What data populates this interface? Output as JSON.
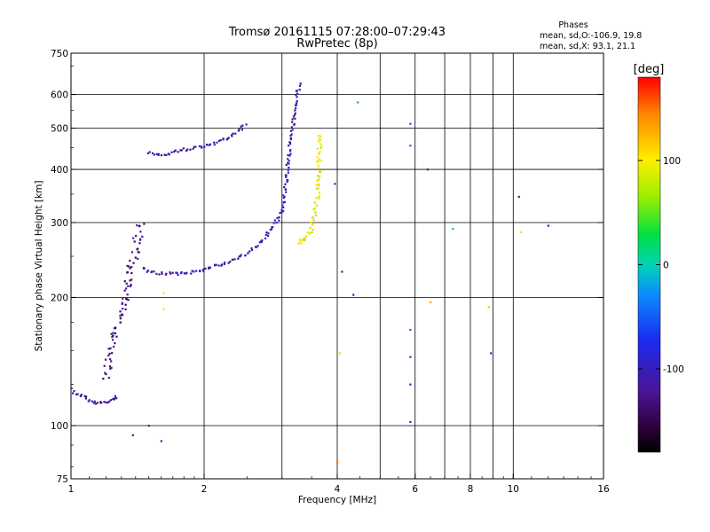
{
  "chart_data": {
    "type": "scatter",
    "title": "Tromsø 20161115 07:28:00–07:29:43",
    "subtitle": "RwPretec (8p)",
    "xlabel": "Frequency [MHz]",
    "ylabel": "Stationary phase Virtual Height [km]",
    "x_scale": "log",
    "y_scale": "log",
    "xlim": [
      1,
      16
    ],
    "ylim": [
      75,
      750
    ],
    "x_ticks": [
      "1",
      "2",
      "4",
      "6",
      "8",
      "10",
      "16"
    ],
    "x_tick_values": [
      1,
      2,
      4,
      6,
      8,
      10,
      16
    ],
    "x_grid_values": [
      2,
      3,
      4,
      5,
      6,
      7,
      8,
      9,
      10
    ],
    "y_ticks": [
      "75",
      "100",
      "200",
      "300",
      "400",
      "500",
      "600",
      "750"
    ],
    "y_tick_values": [
      75,
      100,
      200,
      300,
      400,
      500,
      600,
      750
    ],
    "y_grid_values": [
      100,
      200,
      300,
      400,
      500,
      600
    ],
    "grid": true,
    "info_box": {
      "heading": "Phases",
      "line1": "mean, sd,O:-106.9, 19.8",
      "line2": "mean, sd,X:  93.1, 21.1"
    },
    "colorbar": {
      "label": "[deg]",
      "range": [
        -180,
        180
      ],
      "ticks": [
        "100",
        "0",
        "-100"
      ],
      "tick_values": [
        100,
        0,
        -100
      ]
    },
    "traces": [
      {
        "part": "low-E",
        "x": [
          1.0,
          1.03,
          1.06,
          1.1,
          1.14,
          1.18,
          1.22,
          1.25,
          1.27
        ],
        "y": [
          122,
          118,
          118,
          114,
          113,
          113,
          114,
          116,
          118
        ],
        "phase": -115
      },
      {
        "part": "F-rise",
        "x": [
          1.2,
          1.22,
          1.24,
          1.26,
          1.28,
          1.3,
          1.32,
          1.34,
          1.36,
          1.38,
          1.4,
          1.42,
          1.44
        ],
        "y": [
          130,
          140,
          155,
          165,
          175,
          185,
          200,
          215,
          230,
          245,
          260,
          280,
          300
        ],
        "phase": -130
      },
      {
        "part": "O-trace",
        "x": [
          1.45,
          1.5,
          1.6,
          1.7,
          1.8,
          1.9,
          2.0,
          2.1,
          2.2,
          2.3,
          2.4,
          2.5,
          2.6,
          2.7,
          2.8,
          2.9,
          3.0,
          3.05,
          3.1,
          3.15,
          3.2,
          3.25,
          3.3
        ],
        "y": [
          235,
          230,
          228,
          227,
          228,
          230,
          233,
          237,
          240,
          244,
          248,
          254,
          262,
          272,
          285,
          300,
          320,
          360,
          420,
          480,
          540,
          600,
          640
        ],
        "phase": -105
      },
      {
        "part": "X-trace",
        "x": [
          3.3,
          3.35,
          3.4,
          3.45,
          3.5,
          3.55,
          3.6,
          3.62,
          3.64,
          3.66
        ],
        "y": [
          270,
          272,
          276,
          282,
          292,
          310,
          340,
          380,
          430,
          490
        ],
        "phase": 95
      },
      {
        "part": "upper-branch",
        "x": [
          1.5,
          1.6,
          1.7,
          1.8,
          1.9,
          2.0,
          2.1,
          2.2,
          2.3,
          2.4,
          2.5
        ],
        "y": [
          440,
          430,
          440,
          445,
          450,
          455,
          460,
          470,
          480,
          495,
          510
        ],
        "phase": -110
      }
    ],
    "scatter_points": [
      {
        "x": 1.38,
        "y": 95,
        "phase": -120
      },
      {
        "x": 1.5,
        "y": 100,
        "phase": -120
      },
      {
        "x": 1.6,
        "y": 92,
        "phase": -110
      },
      {
        "x": 3.95,
        "y": 370,
        "phase": -100
      },
      {
        "x": 4.1,
        "y": 230,
        "phase": -110
      },
      {
        "x": 4.35,
        "y": 203,
        "phase": -110
      },
      {
        "x": 4.45,
        "y": 575,
        "phase": -20
      },
      {
        "x": 5.85,
        "y": 512,
        "phase": -60
      },
      {
        "x": 5.85,
        "y": 455,
        "phase": -50
      },
      {
        "x": 5.85,
        "y": 168,
        "phase": -50
      },
      {
        "x": 5.85,
        "y": 145,
        "phase": -70
      },
      {
        "x": 5.85,
        "y": 125,
        "phase": -90
      },
      {
        "x": 5.85,
        "y": 102,
        "phase": -100
      },
      {
        "x": 6.4,
        "y": 400,
        "phase": -110
      },
      {
        "x": 6.5,
        "y": 195,
        "phase": 130
      },
      {
        "x": 7.3,
        "y": 290,
        "phase": -10
      },
      {
        "x": 8.8,
        "y": 190,
        "phase": 120
      },
      {
        "x": 8.9,
        "y": 148,
        "phase": -100
      },
      {
        "x": 10.3,
        "y": 345,
        "phase": -100
      },
      {
        "x": 10.4,
        "y": 285,
        "phase": 110
      },
      {
        "x": 12.0,
        "y": 295,
        "phase": -100
      },
      {
        "x": 4.0,
        "y": 82,
        "phase": 150
      },
      {
        "x": 4.05,
        "y": 148,
        "phase": 80
      },
      {
        "x": 1.62,
        "y": 205,
        "phase": 110
      },
      {
        "x": 1.62,
        "y": 188,
        "phase": 110
      }
    ]
  }
}
